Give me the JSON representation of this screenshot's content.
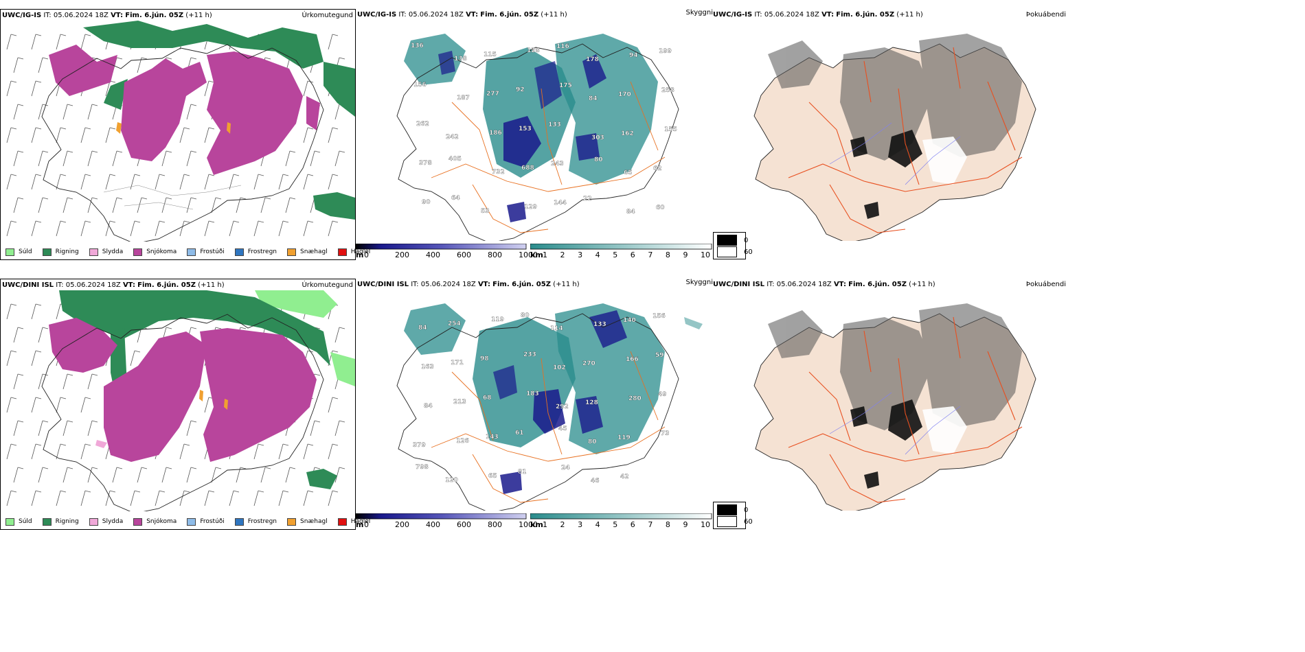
{
  "rows": [
    {
      "id": "ig",
      "precip": {
        "model": "UWC/IG-IS",
        "it_label": "IT:",
        "it": "05.06.2024 18Z",
        "vt_label": "VT:",
        "vt": "Fim. 6.jún. 05Z",
        "lead": "(+11 h)",
        "title": "Úrkomutegund"
      },
      "cloud": {
        "model": "UWC/IG-IS",
        "it_label": "IT:",
        "it": "05.06.2024 18Z",
        "vt_label": "VT:",
        "vt": "Fim. 6.jún. 05Z",
        "lead": "(+11 h)",
        "labels": [
          "136",
          "138",
          "115",
          "128",
          "116",
          "178",
          "94",
          "199",
          "156",
          "187",
          "277",
          "92",
          "175",
          "84",
          "170",
          "258",
          "262",
          "242",
          "186",
          "153",
          "133",
          "303",
          "162",
          "155",
          "378",
          "405",
          "732",
          "688",
          "243",
          "80",
          "65",
          "62",
          "90",
          "64",
          "53",
          "129",
          "144",
          "22",
          "84",
          "60"
        ]
      },
      "vis": {
        "right_title": "Skyggni",
        "model": "UWC/IG-IS",
        "it_label": "IT:",
        "it": "05.06.2024 18Z",
        "vt_label": "VT:",
        "vt": "Fim. 6.jún. 05Z",
        "lead": "(+11 h)",
        "title": "Þokuábendi"
      }
    },
    {
      "id": "dini",
      "precip": {
        "model": "UWC/DINI ISL",
        "it_label": "IT:",
        "it": "05.06.2024 18Z",
        "vt_label": "VT:",
        "vt": "Fim. 6.jún. 05Z",
        "lead": "(+11 h)",
        "title": "Úrkomutegund"
      },
      "cloud": {
        "model": "UWC/DINI ISL",
        "it_label": "IT:",
        "it": "05.06.2024 18Z",
        "vt_label": "VT:",
        "vt": "Fim. 6.jún. 05Z",
        "lead": "(+11 h)",
        "labels": [
          "84",
          "254",
          "119",
          "80",
          "114",
          "133",
          "140",
          "156",
          "163",
          "171",
          "98",
          "233",
          "102",
          "270",
          "166",
          "59",
          "84",
          "213",
          "68",
          "183",
          "292",
          "128",
          "280",
          "49",
          "379",
          "126",
          "143",
          "61",
          "45",
          "80",
          "119",
          "73",
          "798",
          "120",
          "65",
          "81",
          "24",
          "46",
          "42"
        ]
      },
      "vis": {
        "right_title": "Skyggni",
        "model": "UWC/DINI ISL",
        "it_label": "IT:",
        "it": "05.06.2024 18Z",
        "vt_label": "VT:",
        "vt": "Fim. 6.jún. 05Z",
        "lead": "(+11 h)",
        "title": "Þokuábendi"
      }
    }
  ],
  "precip_legend": [
    {
      "label": "Súld",
      "color": "#90ee90"
    },
    {
      "label": "Rigning",
      "color": "#2e8b57"
    },
    {
      "label": "Slydda",
      "color": "#f0a8d8"
    },
    {
      "label": "Snjókoma",
      "color": "#b8459c"
    },
    {
      "label": "Frostúði",
      "color": "#8fbce8"
    },
    {
      "label": "Frostregn",
      "color": "#2f76c0"
    },
    {
      "label": "Snæhagl",
      "color": "#f0a030"
    },
    {
      "label": "Haglél",
      "color": "#e01010"
    }
  ],
  "colorbar_m": {
    "unit": "m",
    "ticks": [
      "0",
      "200",
      "400",
      "600",
      "800",
      "1000"
    ]
  },
  "colorbar_km": {
    "unit": "km",
    "ticks": [
      "1",
      "2",
      "3",
      "4",
      "5",
      "6",
      "7",
      "8",
      "9",
      "10"
    ]
  },
  "vis_legend": {
    "black_label": "0",
    "white_label": "60"
  },
  "colors": {
    "snow": "#b8459c",
    "rain": "#2e8b57",
    "drizzle": "#90ee90",
    "sleet": "#f0a8d8",
    "cloud_low": "#1a1a8c",
    "cloud_teal": "#2a8c8c",
    "roads": "#e87020",
    "land_tan": "#f5e2d3",
    "fog_dark": "#222222"
  }
}
